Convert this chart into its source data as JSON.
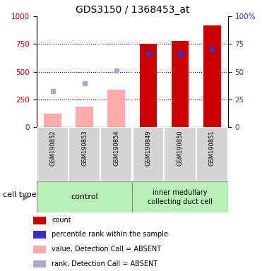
{
  "title": "GDS3150 / 1368453_at",
  "samples": [
    "GSM190852",
    "GSM190853",
    "GSM190854",
    "GSM190849",
    "GSM190850",
    "GSM190851"
  ],
  "bar_values_red": [
    0,
    0,
    0,
    755,
    780,
    920
  ],
  "bar_values_pink": [
    125,
    185,
    340,
    0,
    0,
    0
  ],
  "dot_values_blue_dark": [
    0,
    0,
    0,
    670,
    665,
    710
  ],
  "dot_values_blue_light": [
    325,
    395,
    510,
    0,
    0,
    0
  ],
  "ylim": [
    0,
    1000
  ],
  "yticks_left": [
    0,
    250,
    500,
    750,
    1000
  ],
  "yticks_right": [
    0,
    25,
    50,
    75,
    100
  ],
  "color_red": "#cc0000",
  "color_pink": "#ffaaaa",
  "color_blue_dark": "#3333cc",
  "color_blue_light": "#aaaacc",
  "group_labels": [
    "control",
    "inner medullary\ncollecting duct cell"
  ],
  "group_colors": [
    "#b8f0b8",
    "#b8f0b8"
  ],
  "legend_labels": [
    "count",
    "percentile rank within the sample",
    "value, Detection Call = ABSENT",
    "rank, Detection Call = ABSENT"
  ],
  "legend_colors": [
    "#cc0000",
    "#3333cc",
    "#ffaaaa",
    "#aaaacc"
  ]
}
